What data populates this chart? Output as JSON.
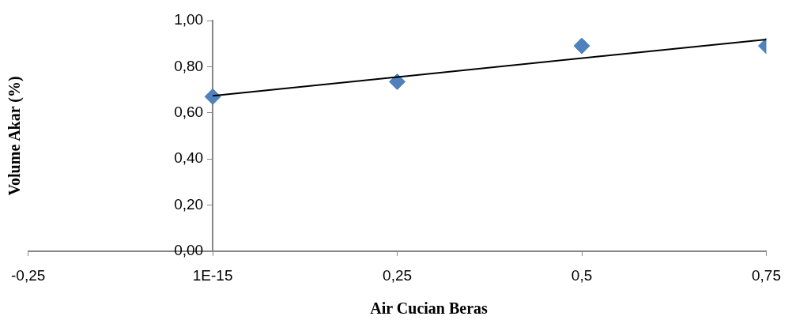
{
  "chart_data": {
    "type": "scatter",
    "xlabel": "Air Cucian Beras",
    "ylabel": "Volume Akar (%)",
    "xlim": [
      -0.25,
      0.75
    ],
    "xticks": [
      {
        "value": -0.25,
        "label": "-0,25"
      },
      {
        "value": 0,
        "label": "1E-15"
      },
      {
        "value": 0.25,
        "label": "0,25"
      },
      {
        "value": 0.5,
        "label": "0,5"
      },
      {
        "value": 0.75,
        "label": "0,75"
      }
    ],
    "ylim": [
      0,
      1
    ],
    "yticks": [
      {
        "value": 0,
        "label": "0,00"
      },
      {
        "value": 0.2,
        "label": "0,20"
      },
      {
        "value": 0.4,
        "label": "0,40"
      },
      {
        "value": 0.6,
        "label": "0,60"
      },
      {
        "value": 0.8,
        "label": "0,80"
      },
      {
        "value": 1,
        "label": "1,00"
      }
    ],
    "grid": false,
    "legend": false,
    "series": [
      {
        "type": "scatter",
        "marker": "diamond",
        "color": "#4f81bd",
        "x": [
          0,
          0.25,
          0.5,
          0.75
        ],
        "values": [
          0.67,
          0.735,
          0.89,
          0.89
        ]
      },
      {
        "type": "line",
        "marker": "none",
        "color": "#000000",
        "x": [
          0,
          0.75
        ],
        "values": [
          0.674,
          0.918
        ]
      }
    ]
  }
}
